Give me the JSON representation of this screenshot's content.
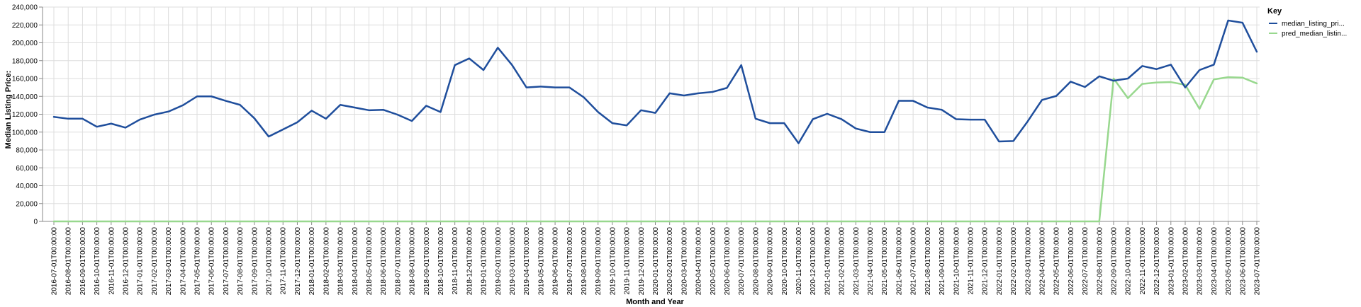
{
  "chart_data": {
    "type": "line",
    "title": "",
    "xlabel": "Month and Year",
    "ylabel": "Median Listing Price:",
    "ylim": [
      0,
      240000
    ],
    "yticks": [
      "0",
      "20,000",
      "40,000",
      "60,000",
      "80,000",
      "100,000",
      "120,000",
      "140,000",
      "160,000",
      "180,000",
      "200,000",
      "220,000",
      "240,000"
    ],
    "grid": true,
    "legend": {
      "title": "Key",
      "placement": "top-right"
    },
    "x": [
      "2016-07-01T00:00:00",
      "2016-08-01T00:00:00",
      "2016-09-01T00:00:00",
      "2016-10-01T00:00:00",
      "2016-11-01T00:00:00",
      "2016-12-01T00:00:00",
      "2017-01-01T00:00:00",
      "2017-02-01T00:00:00",
      "2017-03-01T00:00:00",
      "2017-04-01T00:00:00",
      "2017-05-01T00:00:00",
      "2017-06-01T00:00:00",
      "2017-07-01T00:00:00",
      "2017-08-01T00:00:00",
      "2017-09-01T00:00:00",
      "2017-10-01T00:00:00",
      "2017-11-01T00:00:00",
      "2017-12-01T00:00:00",
      "2018-01-01T00:00:00",
      "2018-02-01T00:00:00",
      "2018-03-01T00:00:00",
      "2018-04-01T00:00:00",
      "2018-05-01T00:00:00",
      "2018-06-01T00:00:00",
      "2018-07-01T00:00:00",
      "2018-08-01T00:00:00",
      "2018-09-01T00:00:00",
      "2018-10-01T00:00:00",
      "2018-11-01T00:00:00",
      "2018-12-01T00:00:00",
      "2019-01-01T00:00:00",
      "2019-02-01T00:00:00",
      "2019-03-01T00:00:00",
      "2019-04-01T00:00:00",
      "2019-05-01T00:00:00",
      "2019-06-01T00:00:00",
      "2019-07-01T00:00:00",
      "2019-08-01T00:00:00",
      "2019-09-01T00:00:00",
      "2019-10-01T00:00:00",
      "2019-11-01T00:00:00",
      "2019-12-01T00:00:00",
      "2020-01-01T00:00:00",
      "2020-02-01T00:00:00",
      "2020-03-01T00:00:00",
      "2020-04-01T00:00:00",
      "2020-05-01T00:00:00",
      "2020-06-01T00:00:00",
      "2020-07-01T00:00:00",
      "2020-08-01T00:00:00",
      "2020-09-01T00:00:00",
      "2020-10-01T00:00:00",
      "2020-11-01T00:00:00",
      "2020-12-01T00:00:00",
      "2021-01-01T00:00:00",
      "2021-02-01T00:00:00",
      "2021-03-01T00:00:00",
      "2021-04-01T00:00:00",
      "2021-05-01T00:00:00",
      "2021-06-01T00:00:00",
      "2021-07-01T00:00:00",
      "2021-08-01T00:00:00",
      "2021-09-01T00:00:00",
      "2021-10-01T00:00:00",
      "2021-11-01T00:00:00",
      "2021-12-01T00:00:00",
      "2022-01-01T00:00:00",
      "2022-02-01T00:00:00",
      "2022-03-01T00:00:00",
      "2022-04-01T00:00:00",
      "2022-05-01T00:00:00",
      "2022-06-01T00:00:00",
      "2022-07-01T00:00:00",
      "2022-08-01T00:00:00",
      "2022-09-01T00:00:00",
      "2022-10-01T00:00:00",
      "2022-11-01T00:00:00",
      "2022-12-01T00:00:00",
      "2023-01-01T00:00:00",
      "2023-02-01T00:00:00",
      "2023-03-01T00:00:00",
      "2023-04-01T00:00:00",
      "2023-05-01T00:00:00",
      "2023-06-01T00:00:00",
      "2023-07-01T00:00:00"
    ],
    "series": [
      {
        "name": "median_listing_pri...",
        "color": "#1f4e9c",
        "values": [
          117000,
          115000,
          115000,
          106000,
          109500,
          105000,
          114000,
          119500,
          123000,
          130000,
          140000,
          140000,
          135000,
          130500,
          115500,
          95000,
          103000,
          111000,
          124000,
          115000,
          130500,
          127500,
          124500,
          125000,
          119500,
          112500,
          129500,
          122500,
          175000,
          182500,
          169500,
          194500,
          175000,
          150000,
          151000,
          150000,
          150000,
          139000,
          122500,
          110000,
          107500,
          124500,
          121500,
          143500,
          141000,
          143500,
          145000,
          149500,
          175000,
          115000,
          110000,
          110000,
          87500,
          114500,
          120500,
          114500,
          104000,
          100000,
          100000,
          135000,
          135000,
          127500,
          125000,
          114500,
          114000,
          114000,
          89500,
          90000,
          112000,
          136000,
          140500,
          156500,
          150500,
          162500,
          157500,
          160000,
          174000,
          170500,
          175500,
          150000,
          169500,
          175500,
          225000,
          222500,
          190000
        ]
      },
      {
        "name": "pred_median_listin...",
        "color": "#98d88e",
        "values": [
          0,
          0,
          0,
          0,
          0,
          0,
          0,
          0,
          0,
          0,
          0,
          0,
          0,
          0,
          0,
          0,
          0,
          0,
          0,
          0,
          0,
          0,
          0,
          0,
          0,
          0,
          0,
          0,
          0,
          0,
          0,
          0,
          0,
          0,
          0,
          0,
          0,
          0,
          0,
          0,
          0,
          0,
          0,
          0,
          0,
          0,
          0,
          0,
          0,
          0,
          0,
          0,
          0,
          0,
          0,
          0,
          0,
          0,
          0,
          0,
          0,
          0,
          0,
          0,
          0,
          0,
          0,
          0,
          0,
          0,
          0,
          0,
          0,
          0,
          160000,
          138000,
          154000,
          155500,
          156000,
          153000,
          126000,
          159000,
          161500,
          161000,
          154500
        ]
      }
    ]
  }
}
